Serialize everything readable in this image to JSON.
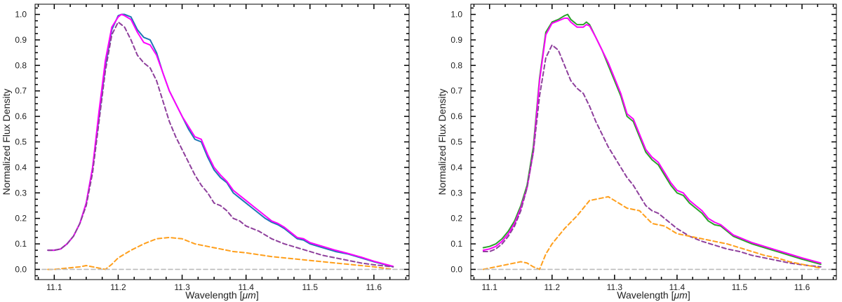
{
  "chart_data": [
    {
      "type": "line",
      "xlabel_prefix": "Wavelength [",
      "xlabel_unit": "μm",
      "xlabel_suffix": "]",
      "ylabel": "Normalized Flux Density",
      "xlim": [
        11.07,
        11.655
      ],
      "ylim": [
        -0.04,
        1.04
      ],
      "xticks": [
        11.1,
        11.2,
        11.3,
        11.4,
        11.5,
        11.6
      ],
      "yticks": [
        0.0,
        0.1,
        0.2,
        0.3,
        0.4,
        0.5,
        0.6,
        0.7,
        0.8,
        0.9,
        1.0
      ],
      "grid": false,
      "series": [
        {
          "color": "#1f77b4",
          "style": "solid",
          "x": [
            11.09,
            11.1,
            11.11,
            11.12,
            11.13,
            11.14,
            11.15,
            11.16,
            11.17,
            11.18,
            11.19,
            11.2,
            11.205,
            11.21,
            11.22,
            11.23,
            11.24,
            11.25,
            11.26,
            11.27,
            11.28,
            11.29,
            11.3,
            11.31,
            11.32,
            11.33,
            11.34,
            11.35,
            11.36,
            11.37,
            11.38,
            11.39,
            11.4,
            11.41,
            11.42,
            11.43,
            11.44,
            11.45,
            11.46,
            11.47,
            11.48,
            11.49,
            11.5,
            11.52,
            11.54,
            11.56,
            11.58,
            11.6,
            11.63
          ],
          "y": [
            0.075,
            0.075,
            0.08,
            0.1,
            0.13,
            0.18,
            0.26,
            0.4,
            0.6,
            0.8,
            0.94,
            0.995,
            1.0,
            1.0,
            0.99,
            0.94,
            0.91,
            0.9,
            0.85,
            0.77,
            0.7,
            0.65,
            0.6,
            0.55,
            0.51,
            0.5,
            0.44,
            0.39,
            0.36,
            0.34,
            0.3,
            0.28,
            0.26,
            0.24,
            0.22,
            0.2,
            0.185,
            0.175,
            0.16,
            0.14,
            0.12,
            0.115,
            0.1,
            0.085,
            0.07,
            0.06,
            0.045,
            0.03,
            0.01
          ]
        },
        {
          "color": "#ff00ff",
          "style": "solid",
          "x": [
            11.09,
            11.1,
            11.11,
            11.12,
            11.13,
            11.14,
            11.15,
            11.16,
            11.17,
            11.18,
            11.19,
            11.2,
            11.205,
            11.21,
            11.22,
            11.23,
            11.24,
            11.25,
            11.26,
            11.27,
            11.28,
            11.29,
            11.3,
            11.31,
            11.32,
            11.33,
            11.34,
            11.35,
            11.36,
            11.37,
            11.38,
            11.39,
            11.4,
            11.41,
            11.42,
            11.43,
            11.44,
            11.45,
            11.46,
            11.47,
            11.48,
            11.49,
            11.5,
            11.52,
            11.54,
            11.56,
            11.58,
            11.6,
            11.63
          ],
          "y": [
            0.075,
            0.075,
            0.08,
            0.1,
            0.13,
            0.18,
            0.26,
            0.4,
            0.62,
            0.82,
            0.95,
            0.99,
            1.0,
            0.995,
            0.98,
            0.93,
            0.89,
            0.88,
            0.84,
            0.77,
            0.7,
            0.65,
            0.6,
            0.56,
            0.52,
            0.51,
            0.45,
            0.4,
            0.37,
            0.345,
            0.31,
            0.29,
            0.27,
            0.25,
            0.23,
            0.21,
            0.19,
            0.18,
            0.165,
            0.145,
            0.125,
            0.12,
            0.105,
            0.09,
            0.075,
            0.062,
            0.048,
            0.032,
            0.012
          ]
        },
        {
          "color": "#8e3f9c",
          "style": "dashed",
          "x": [
            11.09,
            11.1,
            11.11,
            11.12,
            11.13,
            11.14,
            11.15,
            11.16,
            11.17,
            11.18,
            11.19,
            11.2,
            11.21,
            11.22,
            11.23,
            11.24,
            11.25,
            11.26,
            11.27,
            11.28,
            11.29,
            11.3,
            11.31,
            11.32,
            11.33,
            11.34,
            11.35,
            11.36,
            11.37,
            11.38,
            11.39,
            11.4,
            11.42,
            11.44,
            11.46,
            11.48,
            11.5,
            11.52,
            11.54,
            11.56,
            11.58,
            11.6,
            11.63
          ],
          "y": [
            0.075,
            0.075,
            0.08,
            0.1,
            0.13,
            0.18,
            0.25,
            0.38,
            0.58,
            0.78,
            0.92,
            0.97,
            0.95,
            0.9,
            0.84,
            0.81,
            0.79,
            0.74,
            0.66,
            0.58,
            0.52,
            0.47,
            0.42,
            0.37,
            0.33,
            0.3,
            0.26,
            0.25,
            0.23,
            0.2,
            0.19,
            0.17,
            0.15,
            0.12,
            0.1,
            0.085,
            0.07,
            0.055,
            0.045,
            0.035,
            0.025,
            0.018,
            0.01
          ]
        },
        {
          "color": "#ff9f1c",
          "style": "dashed",
          "x": [
            11.09,
            11.1,
            11.12,
            11.14,
            11.15,
            11.16,
            11.17,
            11.18,
            11.19,
            11.2,
            11.21,
            11.22,
            11.24,
            11.26,
            11.28,
            11.3,
            11.32,
            11.34,
            11.36,
            11.38,
            11.4,
            11.44,
            11.48,
            11.52,
            11.56,
            11.6,
            11.63
          ],
          "y": [
            0.0,
            0.0,
            0.005,
            0.01,
            0.015,
            0.01,
            0.005,
            0.0,
            0.02,
            0.045,
            0.06,
            0.075,
            0.1,
            0.12,
            0.125,
            0.12,
            0.1,
            0.09,
            0.08,
            0.07,
            0.065,
            0.05,
            0.04,
            0.03,
            0.02,
            0.01,
            0.0
          ]
        },
        {
          "color": "#bbbbbb",
          "style": "dashed",
          "x": [
            11.07,
            11.655
          ],
          "y": [
            0.0,
            0.0
          ]
        }
      ]
    },
    {
      "type": "line",
      "xlabel_prefix": "Wavelength [",
      "xlabel_unit": "μm",
      "xlabel_suffix": "]",
      "ylabel": "Normalized Flux Density",
      "xlim": [
        11.07,
        11.655
      ],
      "ylim": [
        -0.04,
        1.04
      ],
      "xticks": [
        11.1,
        11.2,
        11.3,
        11.4,
        11.5,
        11.6
      ],
      "yticks": [
        0.0,
        0.1,
        0.2,
        0.3,
        0.4,
        0.5,
        0.6,
        0.7,
        0.8,
        0.9,
        1.0
      ],
      "grid": false,
      "series": [
        {
          "color": "#2ca02c",
          "style": "solid",
          "x": [
            11.09,
            11.1,
            11.11,
            11.12,
            11.13,
            11.14,
            11.15,
            11.16,
            11.17,
            11.18,
            11.19,
            11.2,
            11.21,
            11.22,
            11.225,
            11.23,
            11.24,
            11.25,
            11.255,
            11.26,
            11.27,
            11.28,
            11.29,
            11.3,
            11.31,
            11.32,
            11.33,
            11.34,
            11.35,
            11.36,
            11.37,
            11.38,
            11.39,
            11.4,
            11.41,
            11.42,
            11.43,
            11.44,
            11.45,
            11.46,
            11.47,
            11.48,
            11.49,
            11.5,
            11.52,
            11.54,
            11.56,
            11.58,
            11.6,
            11.63
          ],
          "y": [
            0.085,
            0.09,
            0.1,
            0.12,
            0.15,
            0.19,
            0.25,
            0.33,
            0.48,
            0.75,
            0.93,
            0.97,
            0.98,
            0.995,
            1.0,
            0.98,
            0.96,
            0.96,
            0.97,
            0.96,
            0.91,
            0.86,
            0.8,
            0.74,
            0.68,
            0.6,
            0.58,
            0.52,
            0.46,
            0.43,
            0.41,
            0.37,
            0.33,
            0.3,
            0.29,
            0.26,
            0.24,
            0.22,
            0.19,
            0.175,
            0.17,
            0.15,
            0.13,
            0.12,
            0.1,
            0.085,
            0.07,
            0.055,
            0.04,
            0.02
          ]
        },
        {
          "color": "#ff00ff",
          "style": "solid",
          "x": [
            11.09,
            11.1,
            11.11,
            11.12,
            11.13,
            11.14,
            11.15,
            11.16,
            11.17,
            11.18,
            11.19,
            11.2,
            11.21,
            11.22,
            11.225,
            11.23,
            11.24,
            11.25,
            11.255,
            11.26,
            11.27,
            11.28,
            11.29,
            11.3,
            11.31,
            11.32,
            11.33,
            11.34,
            11.35,
            11.36,
            11.37,
            11.38,
            11.39,
            11.4,
            11.41,
            11.42,
            11.43,
            11.44,
            11.45,
            11.46,
            11.47,
            11.48,
            11.49,
            11.5,
            11.52,
            11.54,
            11.56,
            11.58,
            11.6,
            11.63
          ],
          "y": [
            0.075,
            0.08,
            0.09,
            0.11,
            0.14,
            0.18,
            0.24,
            0.32,
            0.46,
            0.74,
            0.92,
            0.965,
            0.975,
            0.985,
            0.985,
            0.97,
            0.95,
            0.95,
            0.96,
            0.955,
            0.91,
            0.86,
            0.81,
            0.75,
            0.69,
            0.61,
            0.59,
            0.53,
            0.47,
            0.44,
            0.42,
            0.38,
            0.34,
            0.31,
            0.3,
            0.27,
            0.25,
            0.23,
            0.2,
            0.185,
            0.175,
            0.155,
            0.135,
            0.125,
            0.105,
            0.09,
            0.075,
            0.06,
            0.045,
            0.025
          ]
        },
        {
          "color": "#8e3f9c",
          "style": "dashed",
          "x": [
            11.09,
            11.1,
            11.11,
            11.12,
            11.13,
            11.14,
            11.15,
            11.16,
            11.17,
            11.18,
            11.19,
            11.2,
            11.21,
            11.22,
            11.23,
            11.24,
            11.25,
            11.26,
            11.27,
            11.28,
            11.29,
            11.3,
            11.31,
            11.32,
            11.33,
            11.34,
            11.35,
            11.36,
            11.37,
            11.38,
            11.39,
            11.4,
            11.42,
            11.44,
            11.46,
            11.48,
            11.5,
            11.52,
            11.54,
            11.56,
            11.58,
            11.6,
            11.63
          ],
          "y": [
            0.07,
            0.07,
            0.08,
            0.1,
            0.13,
            0.17,
            0.23,
            0.32,
            0.46,
            0.68,
            0.83,
            0.88,
            0.86,
            0.8,
            0.74,
            0.71,
            0.69,
            0.64,
            0.58,
            0.53,
            0.48,
            0.44,
            0.4,
            0.36,
            0.33,
            0.29,
            0.25,
            0.23,
            0.22,
            0.2,
            0.18,
            0.16,
            0.13,
            0.11,
            0.095,
            0.08,
            0.07,
            0.055,
            0.045,
            0.035,
            0.025,
            0.018,
            0.01
          ]
        },
        {
          "color": "#ff9f1c",
          "style": "dashed",
          "x": [
            11.09,
            11.1,
            11.12,
            11.14,
            11.15,
            11.16,
            11.17,
            11.18,
            11.19,
            11.2,
            11.22,
            11.24,
            11.26,
            11.28,
            11.29,
            11.3,
            11.32,
            11.34,
            11.36,
            11.38,
            11.4,
            11.42,
            11.44,
            11.46,
            11.48,
            11.5,
            11.52,
            11.54,
            11.56,
            11.58,
            11.6,
            11.63
          ],
          "y": [
            0.0,
            0.005,
            0.015,
            0.025,
            0.03,
            0.025,
            0.01,
            0.0,
            0.06,
            0.1,
            0.16,
            0.21,
            0.27,
            0.28,
            0.285,
            0.27,
            0.24,
            0.23,
            0.18,
            0.17,
            0.14,
            0.13,
            0.12,
            0.11,
            0.1,
            0.085,
            0.07,
            0.055,
            0.045,
            0.03,
            0.02,
            0.005
          ]
        },
        {
          "color": "#bbbbbb",
          "style": "dashed",
          "x": [
            11.07,
            11.655
          ],
          "y": [
            0.0,
            0.0
          ]
        }
      ]
    }
  ]
}
